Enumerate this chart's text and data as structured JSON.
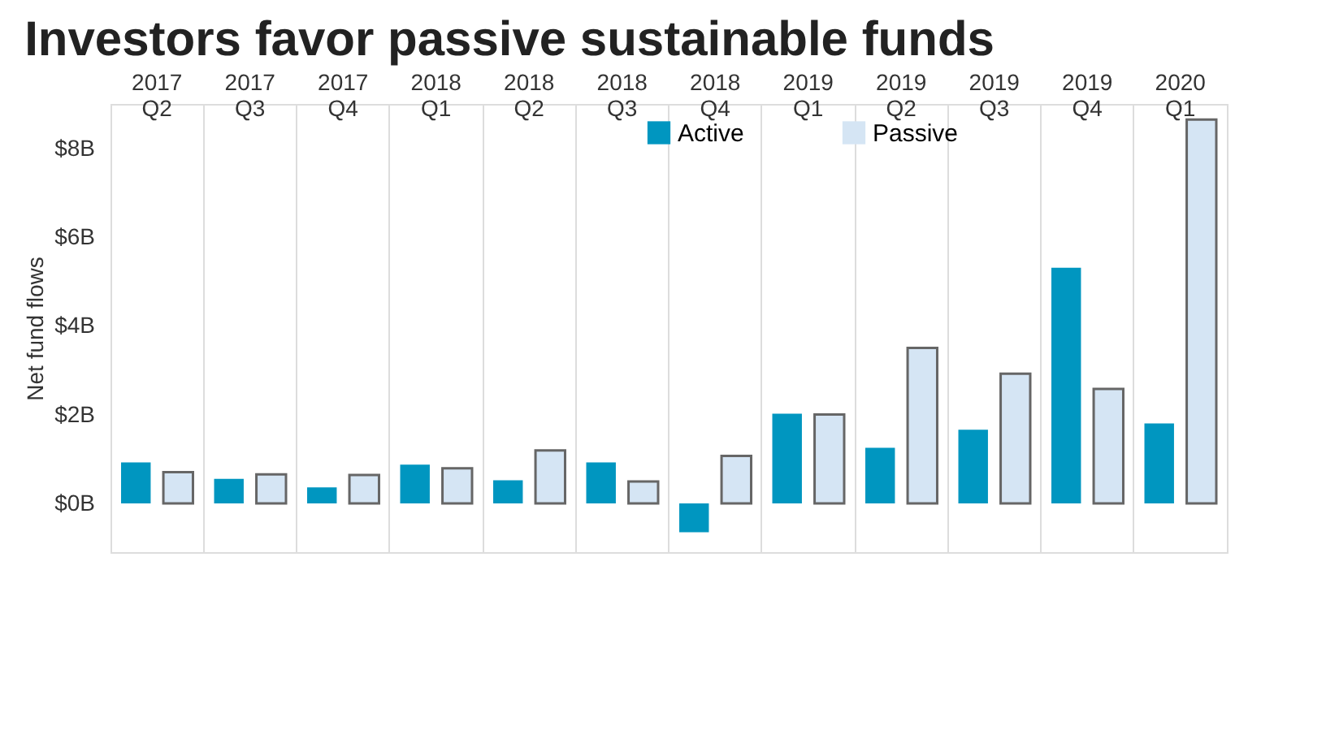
{
  "chart_data": {
    "type": "bar",
    "title": "Investors favor passive sustainable funds",
    "ylabel": "Net fund flows",
    "categories": [
      "2017 Q2",
      "2017 Q3",
      "2017 Q4",
      "2018 Q1",
      "2018 Q2",
      "2018 Q3",
      "2018 Q4",
      "2019 Q1",
      "2019 Q2",
      "2019 Q3",
      "2019 Q4",
      "2020 Q1"
    ],
    "series": [
      {
        "name": "Active",
        "color": "#0096c0",
        "values": [
          0.92,
          0.55,
          0.36,
          0.87,
          0.52,
          0.92,
          -0.65,
          2.02,
          1.25,
          1.66,
          5.31,
          1.8
        ]
      },
      {
        "name": "Passive",
        "color": "#d5e5f4",
        "values": [
          0.7,
          0.65,
          0.64,
          0.79,
          1.19,
          0.49,
          1.07,
          2.0,
          3.5,
          2.92,
          2.58,
          8.65
        ]
      }
    ],
    "ylim": [
      -1.1,
      9
    ],
    "yticks": [
      {
        "value": 0,
        "label": "$0B"
      },
      {
        "value": 2,
        "label": "$2B"
      },
      {
        "value": 4,
        "label": "$4B"
      },
      {
        "value": 6,
        "label": "$6B"
      },
      {
        "value": 8,
        "label": "$8B"
      }
    ],
    "grid": "x",
    "legend": "top"
  }
}
